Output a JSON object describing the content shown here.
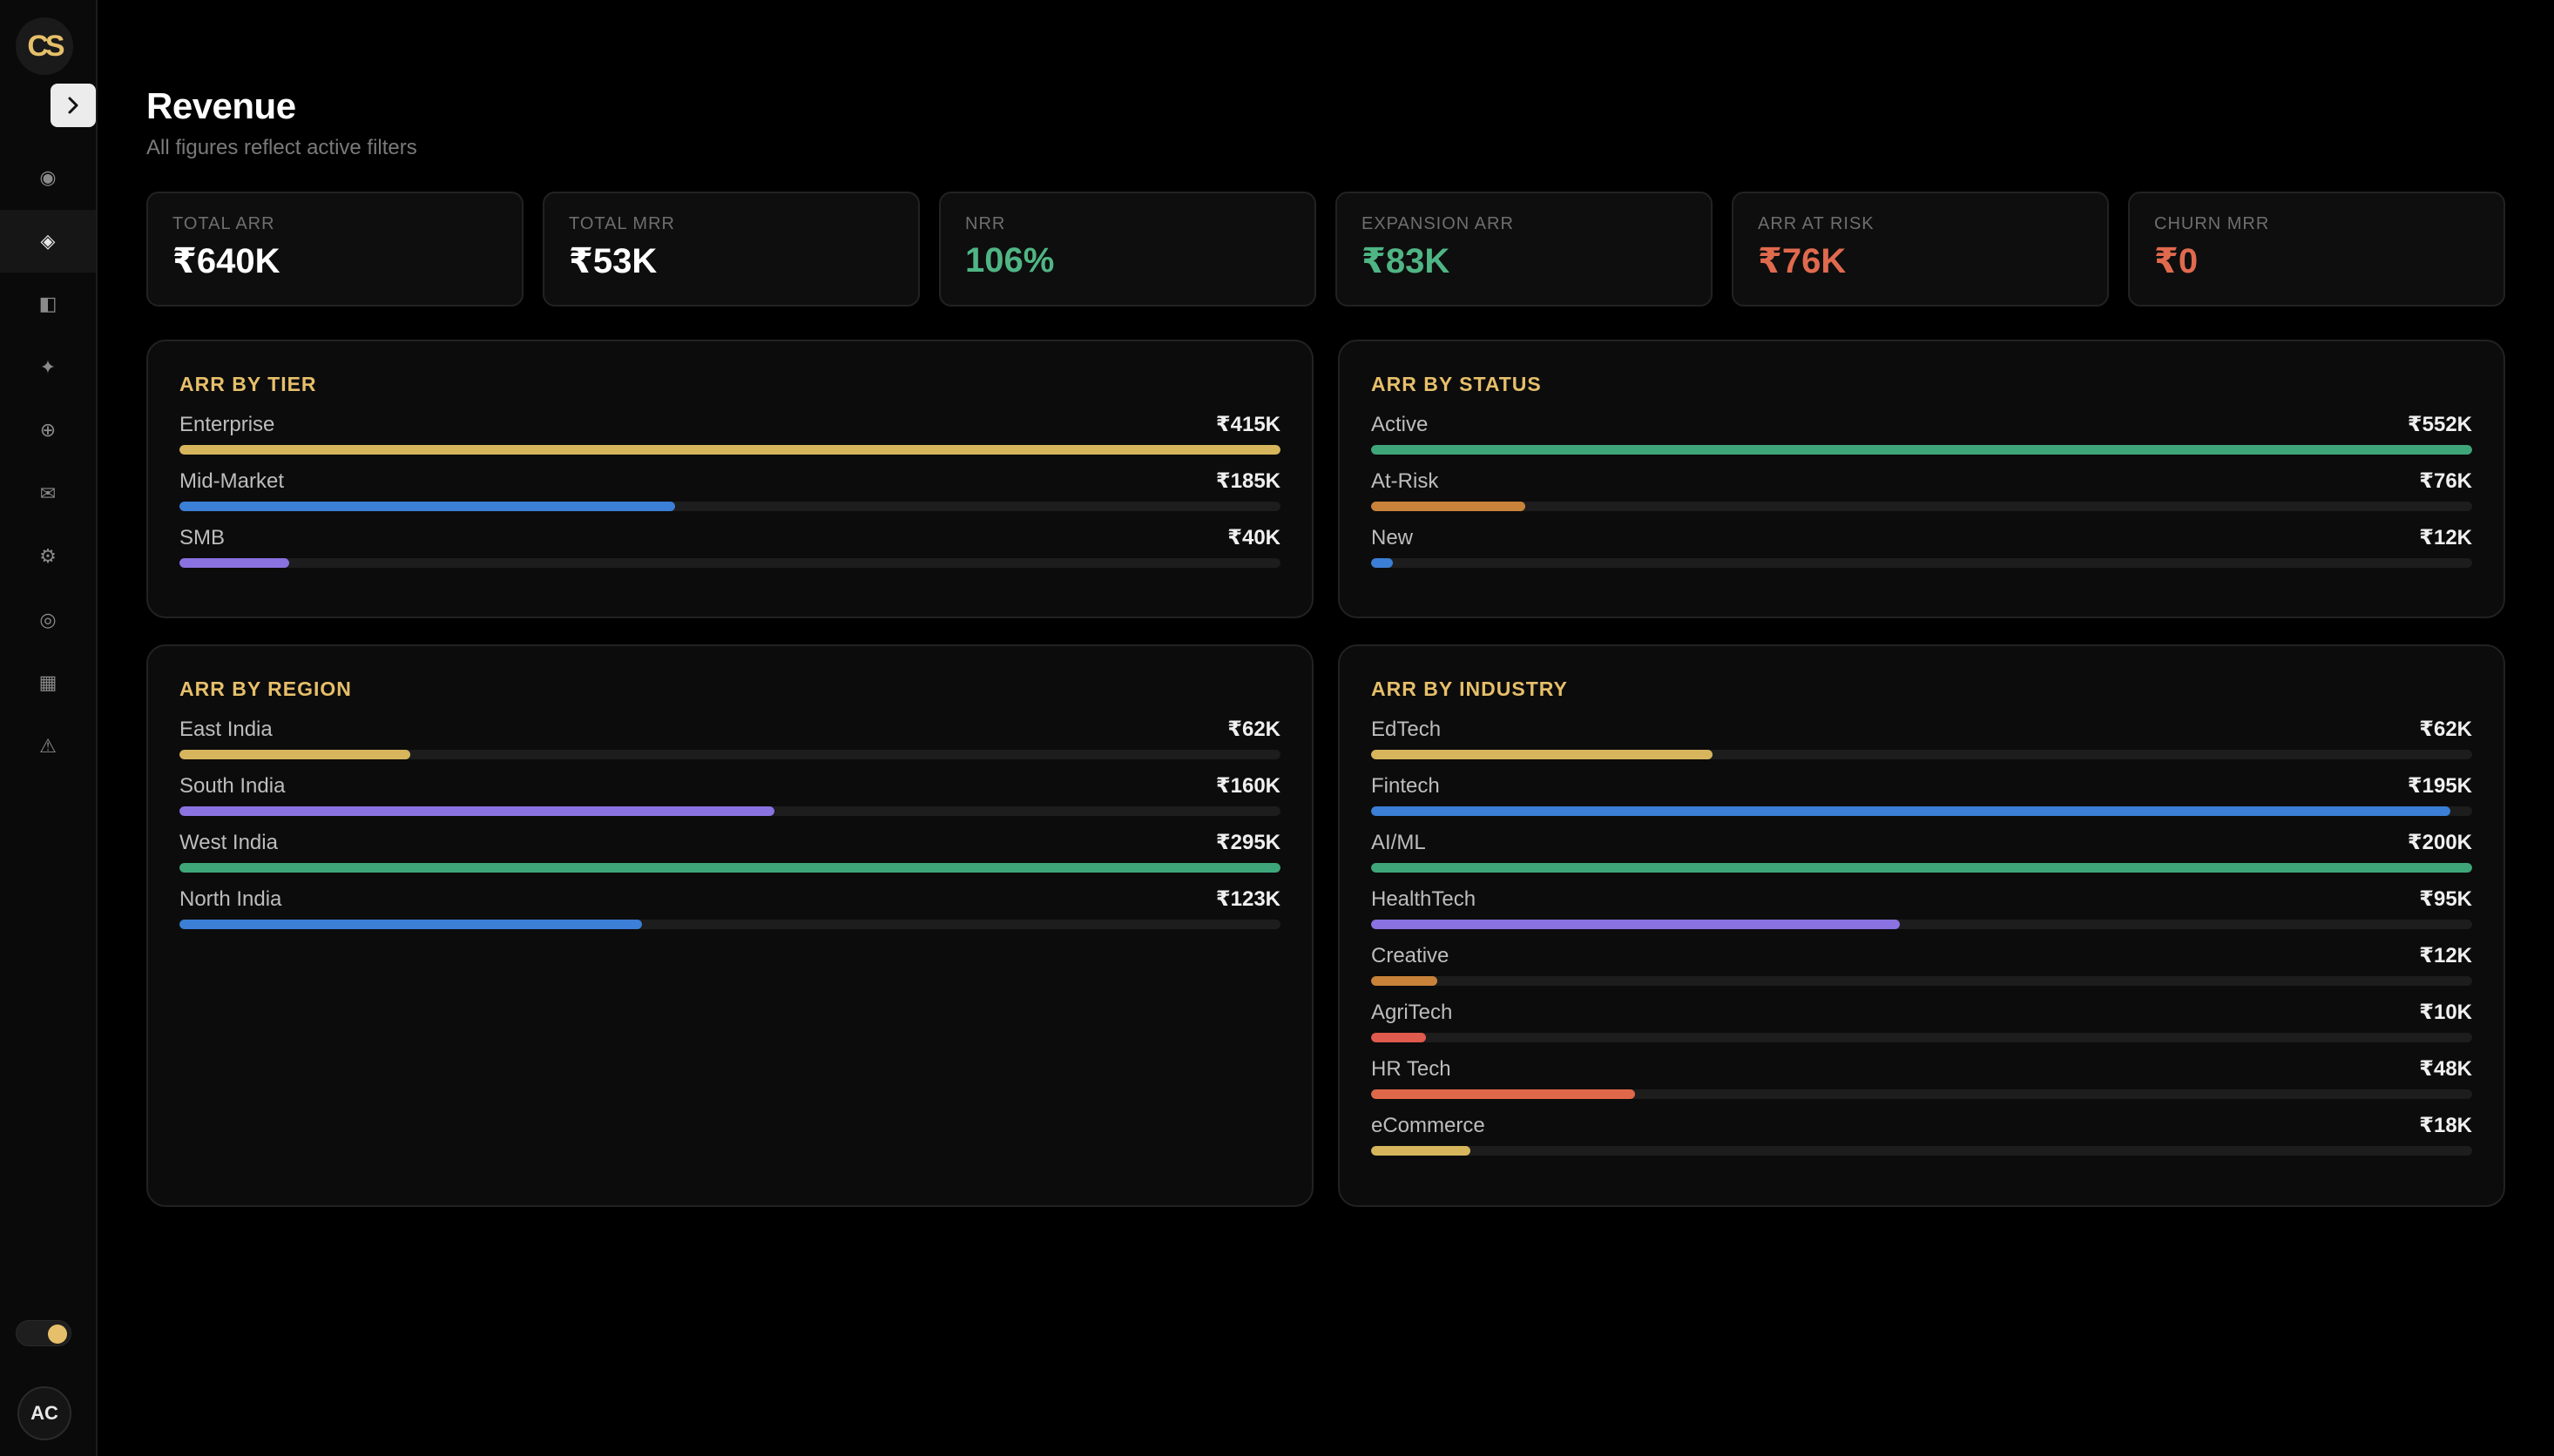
{
  "brand": {
    "logo_text": "CS"
  },
  "sidebar": {
    "items": [
      {
        "name": "nav-item-overview",
        "icon": "circle-dot-icon",
        "glyph": "◉",
        "active": false
      },
      {
        "name": "nav-item-revenue",
        "icon": "diamond-icon",
        "glyph": "◈",
        "active": true
      },
      {
        "name": "nav-item-accounts",
        "icon": "panel-icon",
        "glyph": "◧",
        "active": false
      },
      {
        "name": "nav-item-insights",
        "icon": "sparkle-icon",
        "glyph": "✦",
        "active": false
      },
      {
        "name": "nav-item-add",
        "icon": "plus-circle-icon",
        "glyph": "⊕",
        "active": false
      },
      {
        "name": "nav-item-messages",
        "icon": "mail-icon",
        "glyph": "✉",
        "active": false
      },
      {
        "name": "nav-item-settings",
        "icon": "gear-icon",
        "glyph": "⚙",
        "active": false
      },
      {
        "name": "nav-item-targets",
        "icon": "target-icon",
        "glyph": "◎",
        "active": false
      },
      {
        "name": "nav-item-reports",
        "icon": "grid-icon",
        "glyph": "▦",
        "active": false
      },
      {
        "name": "nav-item-alerts",
        "icon": "warning-icon",
        "glyph": "⚠",
        "active": false
      }
    ],
    "avatar_initials": "AC"
  },
  "header": {
    "title": "Revenue",
    "subtitle": "All figures reflect active filters"
  },
  "kpis": [
    {
      "label": "TOTAL ARR",
      "value": "₹640K",
      "color": "#ffffff"
    },
    {
      "label": "TOTAL MRR",
      "value": "₹53K",
      "color": "#ffffff"
    },
    {
      "label": "NRR",
      "value": "106%",
      "color": "#4fb584"
    },
    {
      "label": "EXPANSION ARR",
      "value": "₹83K",
      "color": "#4fb584"
    },
    {
      "label": "ARR AT RISK",
      "value": "₹76K",
      "color": "#e06a4e"
    },
    {
      "label": "CHURN MRR",
      "value": "₹0",
      "color": "#e06a4e"
    }
  ],
  "panels": {
    "tier": {
      "title": "ARR BY TIER",
      "rows": [
        {
          "label": "Enterprise",
          "value": "₹415K",
          "fill": 1.0,
          "color": "#d6b55c"
        },
        {
          "label": "Mid-Market",
          "value": "₹185K",
          "fill": 0.45,
          "color": "#3b7fd6"
        },
        {
          "label": "SMB",
          "value": "₹40K",
          "fill": 0.1,
          "color": "#8a72e0"
        }
      ]
    },
    "status": {
      "title": "ARR BY STATUS",
      "rows": [
        {
          "label": "Active",
          "value": "₹552K",
          "fill": 1.0,
          "color": "#3fa67a"
        },
        {
          "label": "At-Risk",
          "value": "₹76K",
          "fill": 0.14,
          "color": "#c9823a"
        },
        {
          "label": "New",
          "value": "₹12K",
          "fill": 0.02,
          "color": "#3b7fd6"
        }
      ]
    },
    "region": {
      "title": "ARR BY REGION",
      "rows": [
        {
          "label": "East India",
          "value": "₹62K",
          "fill": 0.21,
          "color": "#d6b55c"
        },
        {
          "label": "South India",
          "value": "₹160K",
          "fill": 0.54,
          "color": "#8a72e0"
        },
        {
          "label": "West India",
          "value": "₹295K",
          "fill": 1.0,
          "color": "#3fa67a"
        },
        {
          "label": "North India",
          "value": "₹123K",
          "fill": 0.42,
          "color": "#3b7fd6"
        }
      ]
    },
    "industry": {
      "title": "ARR BY INDUSTRY",
      "rows": [
        {
          "label": "EdTech",
          "value": "₹62K",
          "fill": 0.31,
          "color": "#d6b55c"
        },
        {
          "label": "Fintech",
          "value": "₹195K",
          "fill": 0.98,
          "color": "#3b7fd6"
        },
        {
          "label": "AI/ML",
          "value": "₹200K",
          "fill": 1.0,
          "color": "#3fa67a"
        },
        {
          "label": "HealthTech",
          "value": "₹95K",
          "fill": 0.48,
          "color": "#8a72e0"
        },
        {
          "label": "Creative",
          "value": "₹12K",
          "fill": 0.06,
          "color": "#c9823a"
        },
        {
          "label": "AgriTech",
          "value": "₹10K",
          "fill": 0.05,
          "color": "#e05a4e"
        },
        {
          "label": "HR Tech",
          "value": "₹48K",
          "fill": 0.24,
          "color": "#e0684a"
        },
        {
          "label": "eCommerce",
          "value": "₹18K",
          "fill": 0.09,
          "color": "#d6b55c"
        }
      ]
    }
  }
}
